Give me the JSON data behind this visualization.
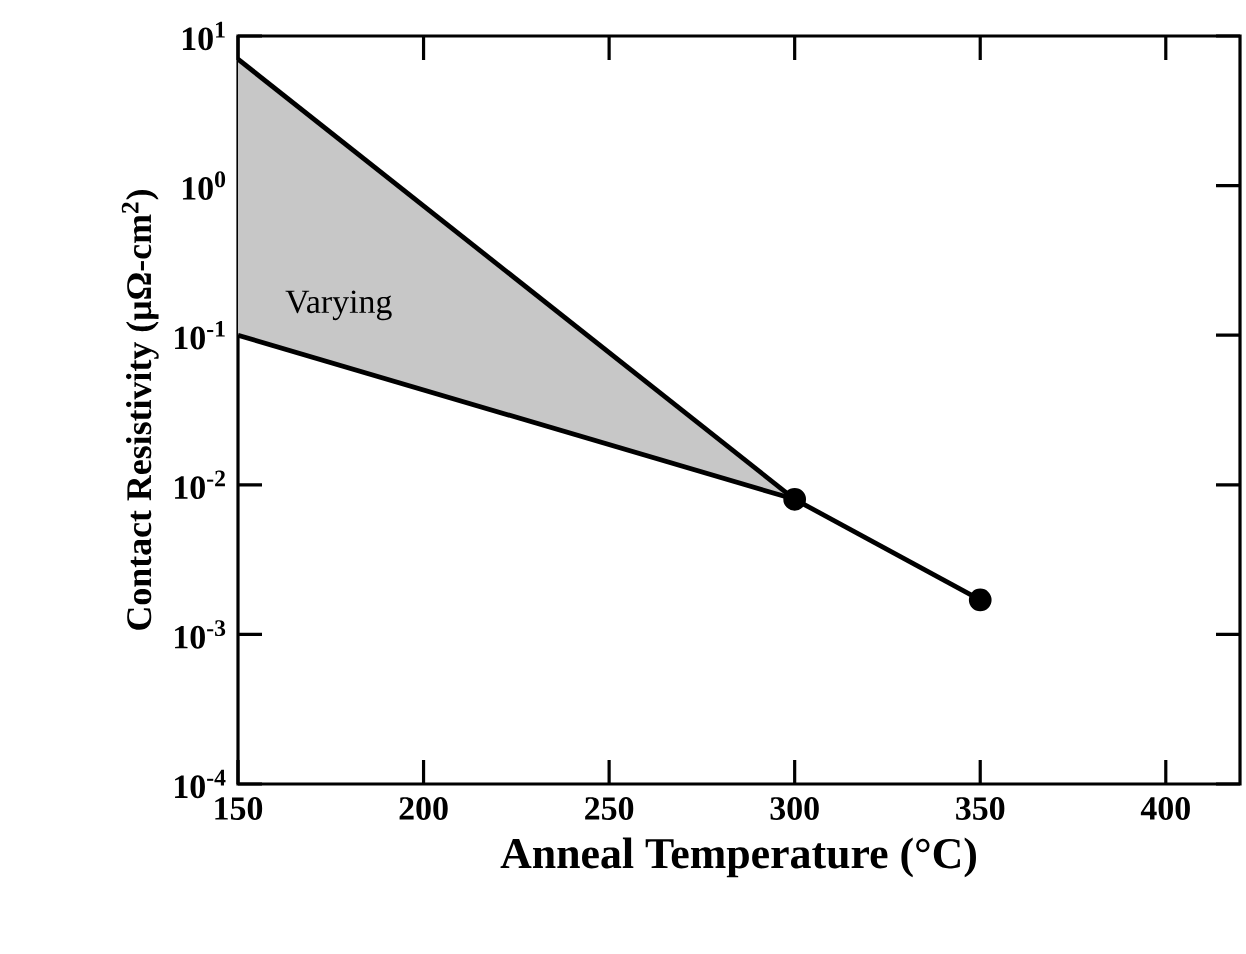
{
  "chart_data": {
    "type": "line",
    "xlabel": "Anneal Temperature (°C)",
    "ylabel": "Contact Resistivity (μΩ-cm$^{2}$)",
    "xlim": [
      150,
      420
    ],
    "ylim": [
      0.0001,
      10
    ],
    "log": "y",
    "grid": false,
    "xticks": [
      150,
      200,
      250,
      300,
      350,
      400
    ],
    "yticks": [
      {
        "value": 0.0001,
        "label": "10$^{-4}$"
      },
      {
        "value": 0.001,
        "label": "10$^{-3}$"
      },
      {
        "value": 0.01,
        "label": "10$^{-2}$"
      },
      {
        "value": 0.1,
        "label": "10$^{-1}$"
      },
      {
        "value": 1,
        "label": "10$^{0}$"
      },
      {
        "value": 10,
        "label": "10$^{1}$"
      }
    ],
    "series": [
      {
        "color": "#000000",
        "x": [
          150,
          300
        ],
        "values": [
          7,
          0.008
        ],
        "lower": [
          0.1,
          0.008
        ],
        "upper": [
          7,
          0.008
        ]
      },
      {
        "color": "#000000",
        "x": [
          150,
          300
        ],
        "values": [
          0.1,
          0.008
        ]
      },
      {
        "color": "#000000",
        "x": [
          300,
          350
        ],
        "values": [
          0.008,
          0.0017
        ],
        "marker": "circle"
      }
    ],
    "annotations": [
      "Varying"
    ]
  }
}
